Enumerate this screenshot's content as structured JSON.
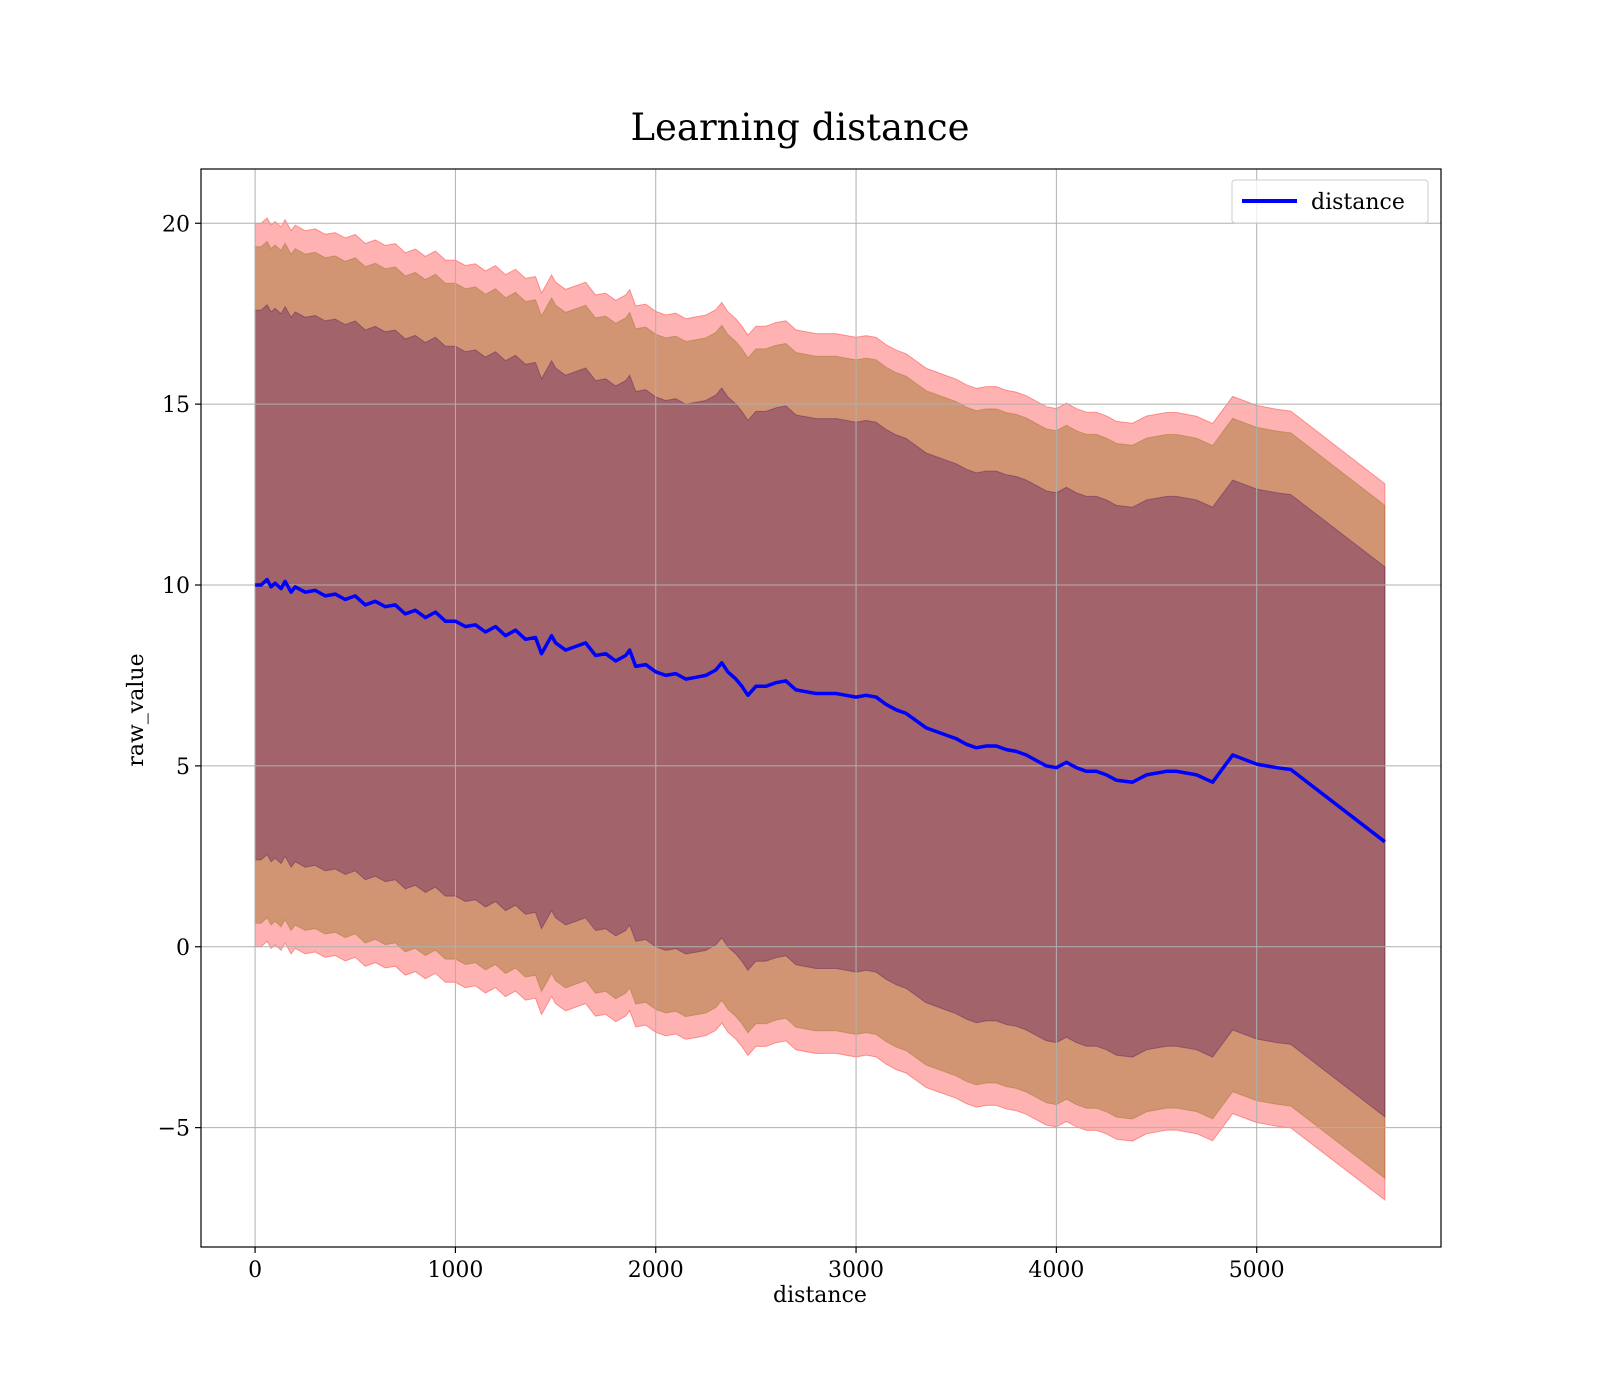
{
  "chart_data": {
    "type": "area",
    "title": "Learning distance",
    "xlabel": "distance",
    "ylabel": "raw_value",
    "xlim": [
      -270,
      5920
    ],
    "ylim": [
      -8.3,
      21.5
    ],
    "xticks": [
      0,
      1000,
      2000,
      3000,
      4000,
      5000
    ],
    "yticks": [
      -5,
      0,
      5,
      10,
      15,
      20
    ],
    "xtick_labels": [
      "0",
      "1000",
      "2000",
      "3000",
      "4000",
      "5000"
    ],
    "ytick_labels": [
      "−5",
      "0",
      "5",
      "10",
      "15",
      "20"
    ],
    "grid": true,
    "legend": {
      "position": "top-right",
      "entries": [
        "distance"
      ]
    },
    "colors": {
      "line": "#0000ff",
      "band_outer": "#ff0000",
      "band_middle": "#8b6914",
      "band_inner": "#4b0a5a",
      "grid": "#b0b0b0"
    },
    "series": [
      {
        "name": "distance",
        "x": [
          0,
          30,
          60,
          80,
          100,
          130,
          150,
          180,
          200,
          250,
          300,
          350,
          400,
          450,
          500,
          550,
          600,
          650,
          700,
          750,
          800,
          850,
          900,
          950,
          1000,
          1050,
          1100,
          1150,
          1200,
          1250,
          1300,
          1350,
          1400,
          1430,
          1450,
          1480,
          1500,
          1550,
          1600,
          1650,
          1700,
          1750,
          1800,
          1850,
          1870,
          1900,
          1950,
          2000,
          2050,
          2100,
          2150,
          2200,
          2250,
          2300,
          2330,
          2360,
          2400,
          2430,
          2460,
          2500,
          2550,
          2600,
          2650,
          2700,
          2750,
          2800,
          2850,
          2900,
          2950,
          3000,
          3050,
          3100,
          3150,
          3200,
          3250,
          3300,
          3350,
          3400,
          3450,
          3500,
          3550,
          3600,
          3650,
          3700,
          3750,
          3800,
          3850,
          3900,
          3950,
          4000,
          4050,
          4100,
          4150,
          4200,
          4250,
          4300,
          4380,
          4450,
          4550,
          4600,
          4700,
          4780,
          4880,
          5000,
          5100,
          5170,
          5640
        ],
        "y": [
          10.0,
          10.0,
          10.15,
          9.95,
          10.05,
          9.9,
          10.1,
          9.8,
          9.95,
          9.8,
          9.85,
          9.7,
          9.75,
          9.6,
          9.7,
          9.45,
          9.55,
          9.4,
          9.45,
          9.2,
          9.3,
          9.1,
          9.25,
          9.0,
          9.0,
          8.85,
          8.9,
          8.7,
          8.85,
          8.6,
          8.75,
          8.5,
          8.55,
          8.1,
          8.3,
          8.6,
          8.4,
          8.2,
          8.3,
          8.4,
          8.05,
          8.1,
          7.9,
          8.05,
          8.2,
          7.75,
          7.8,
          7.6,
          7.5,
          7.55,
          7.4,
          7.45,
          7.5,
          7.65,
          7.85,
          7.6,
          7.4,
          7.2,
          6.95,
          7.2,
          7.2,
          7.3,
          7.35,
          7.1,
          7.05,
          7.0,
          7.0,
          7.0,
          6.95,
          6.9,
          6.95,
          6.9,
          6.7,
          6.55,
          6.45,
          6.25,
          6.05,
          5.95,
          5.85,
          5.75,
          5.6,
          5.5,
          5.55,
          5.55,
          5.45,
          5.4,
          5.3,
          5.15,
          5.0,
          4.95,
          5.1,
          4.95,
          4.85,
          4.85,
          4.75,
          4.6,
          4.55,
          4.75,
          4.85,
          4.85,
          4.75,
          4.55,
          5.3,
          5.05,
          4.95,
          4.9,
          2.9
        ]
      }
    ],
    "bands": [
      {
        "half_width_start": 10.0,
        "half_width_end": 9.9
      },
      {
        "half_width_start": 9.35,
        "half_width_end": 9.3
      },
      {
        "half_width_start": 7.6,
        "half_width_end": 7.6
      }
    ]
  }
}
